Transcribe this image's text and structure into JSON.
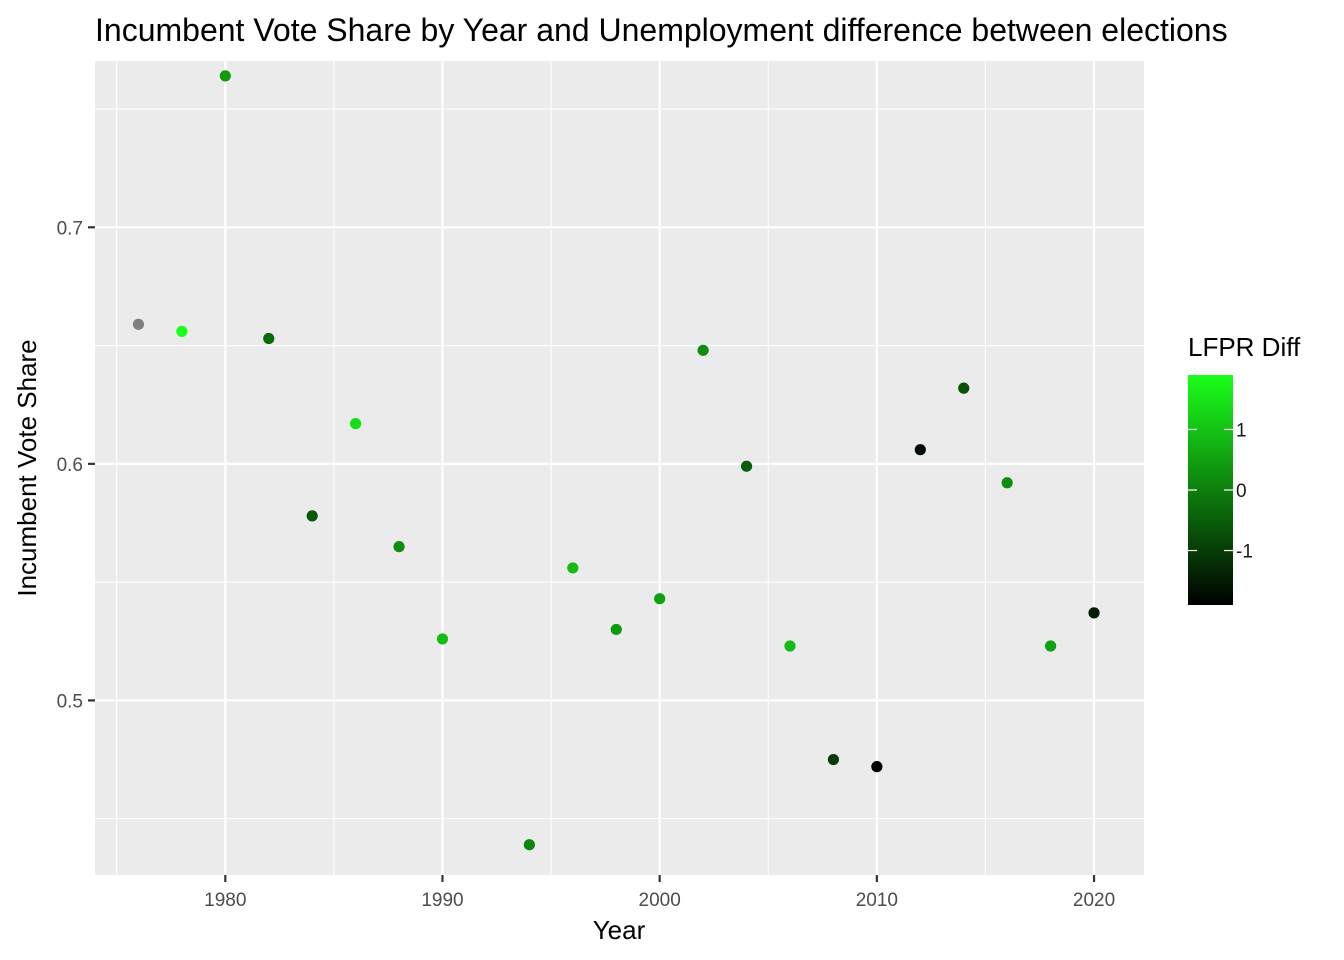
{
  "chart_data": {
    "type": "scatter",
    "title": "Incumbent Vote Share by Year and Unemployment difference between elections",
    "xlabel": "Year",
    "ylabel": "Incumbent Vote Share",
    "xlim": [
      1974,
      2022.3
    ],
    "ylim": [
      0.4262,
      0.7703
    ],
    "x_ticks": [
      1980,
      1990,
      2000,
      2010,
      2020
    ],
    "x_tick_labels": [
      "1980",
      "1990",
      "2000",
      "2010",
      "2020"
    ],
    "y_ticks": [
      0.5,
      0.6,
      0.7
    ],
    "y_tick_labels": [
      "0.5",
      "0.6",
      "0.7"
    ],
    "grid": true,
    "legend": {
      "title": "LFPR Diff",
      "placement": "right",
      "type": "colorbar",
      "range": [
        -1.9,
        1.9
      ],
      "ticks": [
        1,
        0,
        -1
      ],
      "tick_labels": [
        "1",
        "0",
        "-1"
      ],
      "low_color": "#000000",
      "high_color": "#1aff1a",
      "na_color": "#7f7f7f"
    },
    "points": [
      {
        "year": 1976,
        "share": 0.659,
        "lfpr_diff": null
      },
      {
        "year": 1978,
        "share": 0.656,
        "lfpr_diff": 1.9
      },
      {
        "year": 1980,
        "share": 0.764,
        "lfpr_diff": 0.4
      },
      {
        "year": 1982,
        "share": 0.653,
        "lfpr_diff": -0.3
      },
      {
        "year": 1984,
        "share": 0.578,
        "lfpr_diff": -0.6
      },
      {
        "year": 1986,
        "share": 0.617,
        "lfpr_diff": 1.4
      },
      {
        "year": 1988,
        "share": 0.565,
        "lfpr_diff": 0.2
      },
      {
        "year": 1990,
        "share": 0.526,
        "lfpr_diff": 0.9
      },
      {
        "year": 1994,
        "share": 0.439,
        "lfpr_diff": 0.1
      },
      {
        "year": 1996,
        "share": 0.556,
        "lfpr_diff": 0.9
      },
      {
        "year": 1998,
        "share": 0.53,
        "lfpr_diff": 0.4
      },
      {
        "year": 2000,
        "share": 0.543,
        "lfpr_diff": 0.5
      },
      {
        "year": 2002,
        "share": 0.648,
        "lfpr_diff": 0.2
      },
      {
        "year": 2004,
        "share": 0.599,
        "lfpr_diff": -0.5
      },
      {
        "year": 2006,
        "share": 0.523,
        "lfpr_diff": 0.9
      },
      {
        "year": 2008,
        "share": 0.475,
        "lfpr_diff": -1.0
      },
      {
        "year": 2010,
        "share": 0.472,
        "lfpr_diff": -1.9
      },
      {
        "year": 2012,
        "share": 0.606,
        "lfpr_diff": -1.8
      },
      {
        "year": 2014,
        "share": 0.632,
        "lfpr_diff": -0.7
      },
      {
        "year": 2016,
        "share": 0.592,
        "lfpr_diff": 0.2
      },
      {
        "year": 2018,
        "share": 0.523,
        "lfpr_diff": 0.5
      },
      {
        "year": 2020,
        "share": 0.537,
        "lfpr_diff": -1.5
      }
    ]
  }
}
